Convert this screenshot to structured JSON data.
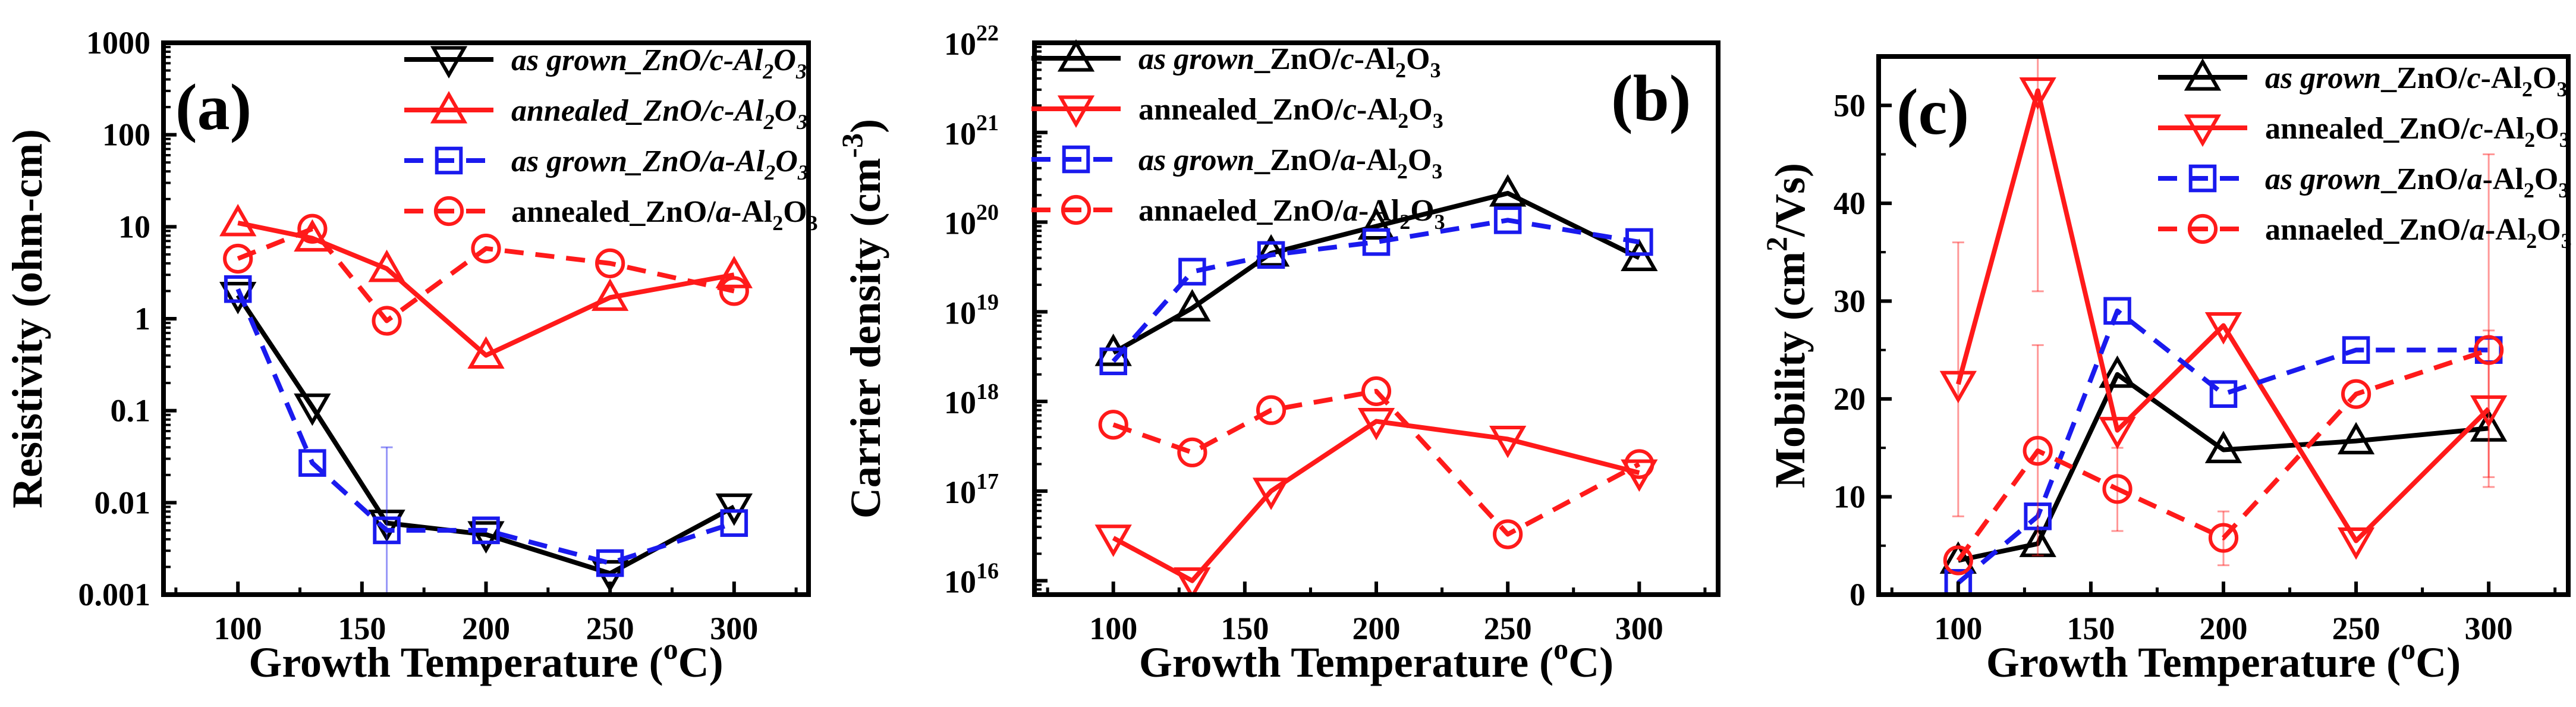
{
  "colors": {
    "black": "#000000",
    "red": "#ff1a1a",
    "blue": "#1a1aee"
  },
  "chart_data": [
    {
      "id": "a",
      "type": "line",
      "panel_label": "(a)",
      "xlabel": "Growth Temperature (",
      "xlabel_sup": "o",
      "xlabel_tail": "C)",
      "ylabel": "Resistivity (ohm-cm)",
      "yscale": "log",
      "xlim": [
        70,
        330
      ],
      "ylim": [
        0.001,
        1000
      ],
      "xticks": [
        100,
        150,
        200,
        250,
        300
      ],
      "yticks": [
        0.001,
        0.01,
        0.1,
        1,
        10,
        100,
        1000
      ],
      "ytick_labels": [
        "0.001",
        "0.01",
        "0.1",
        "1",
        "10",
        "100",
        "1000"
      ],
      "legend_position": "top-right",
      "series": [
        {
          "name": "as grown_ZnO/c-Al2O3",
          "name_parts": [
            [
              "as grown_ZnO/c-Al",
              true
            ],
            [
              "2",
              true,
              "sub"
            ],
            [
              "O",
              true
            ],
            [
              "3",
              true,
              "sub"
            ]
          ],
          "color": "black",
          "marker": "triangle-down",
          "dash": "solid",
          "x": [
            100,
            130,
            160,
            200,
            250,
            300
          ],
          "y": [
            1.8,
            0.11,
            0.006,
            0.0045,
            0.0017,
            0.009
          ]
        },
        {
          "name": "annealed_ZnO/c-Al2O3",
          "name_parts": [
            [
              "annealed_ZnO/c-Al",
              true
            ],
            [
              "2",
              true,
              "sub"
            ],
            [
              "O",
              true
            ],
            [
              "3",
              true,
              "sub"
            ]
          ],
          "color": "red",
          "marker": "triangle-up",
          "dash": "solid",
          "x": [
            100,
            130,
            160,
            200,
            250,
            300
          ],
          "y": [
            11,
            7.5,
            3.5,
            0.4,
            1.7,
            3
          ]
        },
        {
          "name": "as grown_ZnO/a-Al2O3",
          "name_parts": [
            [
              "as grown_ZnO/a-Al",
              true
            ],
            [
              "2",
              true,
              "sub"
            ],
            [
              "O",
              true
            ],
            [
              "3",
              true,
              "sub"
            ]
          ],
          "color": "blue",
          "marker": "square",
          "dash": "dashed",
          "x": [
            100,
            130,
            160,
            200,
            250,
            300
          ],
          "y": [
            2.1,
            0.027,
            0.005,
            0.005,
            0.0022,
            0.006
          ],
          "errors": [
            {
              "x": 160,
              "low": 0.001,
              "high": 0.04
            }
          ]
        },
        {
          "name": "annealed_ZnO/a-Al2O3",
          "name_parts": [
            [
              "annealed_ZnO/",
              false
            ],
            [
              "a",
              true
            ],
            [
              "-Al",
              false
            ],
            [
              "2",
              false,
              "sub"
            ],
            [
              "O",
              false
            ],
            [
              "3",
              false,
              "sub"
            ]
          ],
          "color": "red",
          "marker": "circle",
          "dash": "dashed",
          "x": [
            100,
            130,
            160,
            200,
            250,
            300
          ],
          "y": [
            4.5,
            9.5,
            0.95,
            5.8,
            4,
            2
          ]
        }
      ]
    },
    {
      "id": "b",
      "type": "line",
      "panel_label": "(b)",
      "xlabel": "Growth Temperature (",
      "xlabel_sup": "o",
      "xlabel_tail": "C)",
      "ylabel": "Carrier density (cm",
      "ylabel_sup": "-3",
      "ylabel_tail": ")",
      "yscale": "log",
      "xlim": [
        70,
        330
      ],
      "ylim": [
        7000000000000000.0,
        1e+22
      ],
      "xticks": [
        100,
        150,
        200,
        250,
        300
      ],
      "yticks": [
        1e+16,
        1e+17,
        1e+18,
        1e+19,
        1e+20,
        1e+21,
        1e+22
      ],
      "ytick_exponents": [
        "16",
        "17",
        "18",
        "19",
        "20",
        "21",
        "22"
      ],
      "ytick_base": "10",
      "legend_position": "top-left",
      "series": [
        {
          "name": "as grown_ZnO/c-Al2O3",
          "name_parts": [
            [
              "as grown",
              true
            ],
            [
              "_ZnO/",
              false
            ],
            [
              "c",
              true
            ],
            [
              "-Al",
              false
            ],
            [
              "2",
              false,
              "sub"
            ],
            [
              "O",
              false
            ],
            [
              "3",
              false,
              "sub"
            ]
          ],
          "color": "black",
          "marker": "triangle-up",
          "dash": "solid",
          "x": [
            100,
            130,
            160,
            200,
            250,
            300
          ],
          "y": [
            3.5e+18,
            1.1e+19,
            4.5e+19,
            9e+19,
            2.1e+20,
            4e+19
          ]
        },
        {
          "name": "annealed_ZnO/c-Al2O3",
          "name_parts": [
            [
              "annealed_ZnO/",
              false
            ],
            [
              "c",
              true
            ],
            [
              "-Al",
              false
            ],
            [
              "2",
              false,
              "sub"
            ],
            [
              "O",
              false
            ],
            [
              "3",
              false,
              "sub"
            ]
          ],
          "color": "red",
          "marker": "triangle-down",
          "dash": "solid",
          "x": [
            100,
            130,
            160,
            200,
            250,
            300
          ],
          "y": [
            3e+16,
            1e+16,
            1e+17,
            6e+17,
            3.8e+17,
            1.6e+17
          ]
        },
        {
          "name": "as grown_ZnO/a-Al2O3",
          "name_parts": [
            [
              "as grown",
              true
            ],
            [
              "_ZnO/",
              false
            ],
            [
              "a",
              true
            ],
            [
              "-Al",
              false
            ],
            [
              "2",
              false,
              "sub"
            ],
            [
              "O",
              false
            ],
            [
              "3",
              false,
              "sub"
            ]
          ],
          "color": "blue",
          "marker": "square",
          "dash": "dashed",
          "x": [
            100,
            130,
            160,
            200,
            250,
            300
          ],
          "y": [
            2.8e+18,
            2.8e+19,
            4.3e+19,
            6e+19,
            1.05e+20,
            6e+19
          ]
        },
        {
          "name": "annaeled_ZnO/a-Al2O3",
          "name_parts": [
            [
              "annaeled_ZnO/",
              false
            ],
            [
              "a",
              true
            ],
            [
              "-Al",
              false
            ],
            [
              "2",
              false,
              "sub"
            ],
            [
              "O",
              false
            ],
            [
              "3",
              false,
              "sub"
            ]
          ],
          "color": "red",
          "marker": "circle",
          "dash": "dashed",
          "x": [
            100,
            130,
            160,
            200,
            250,
            300
          ],
          "y": [
            5.5e+17,
            2.7e+17,
            8e+17,
            1.3e+18,
            3.3e+16,
            2e+17
          ]
        }
      ]
    },
    {
      "id": "c",
      "type": "line",
      "panel_label": "(c)",
      "xlabel": "Growth Temperature (",
      "xlabel_sup": "o",
      "xlabel_tail": "C)",
      "ylabel": "Mobility (cm",
      "ylabel_sup": "2",
      "ylabel_tail": "/Vs)",
      "yscale": "linear",
      "xlim": [
        70,
        330
      ],
      "ylim": [
        0,
        55
      ],
      "xticks": [
        100,
        150,
        200,
        250,
        300
      ],
      "yticks": [
        0,
        10,
        20,
        30,
        40,
        50
      ],
      "ytick_labels": [
        "0",
        "10",
        "20",
        "30",
        "40",
        "50"
      ],
      "legend_position": "top-right",
      "series": [
        {
          "name": "as grown_ZnO/c-Al2O3",
          "name_parts": [
            [
              "as grown",
              true
            ],
            [
              "_ZnO/",
              false
            ],
            [
              "c",
              true
            ],
            [
              "-Al",
              false
            ],
            [
              "2",
              false,
              "sub"
            ],
            [
              "O",
              false
            ],
            [
              "3",
              false,
              "sub"
            ]
          ],
          "color": "black",
          "marker": "triangle-up",
          "dash": "solid",
          "x": [
            100,
            130,
            160,
            200,
            250,
            300
          ],
          "y": [
            3.5,
            5.2,
            22.5,
            14.8,
            15.7,
            17
          ]
        },
        {
          "name": "annealed_ZnO/c-Al2O3",
          "name_parts": [
            [
              "annealed_ZnO/",
              false
            ],
            [
              "c",
              true
            ],
            [
              "-Al",
              false
            ],
            [
              "2",
              false,
              "sub"
            ],
            [
              "O",
              false
            ],
            [
              "3",
              false,
              "sub"
            ]
          ],
          "color": "red",
          "marker": "triangle-down",
          "dash": "solid",
          "x": [
            100,
            130,
            160,
            200,
            250,
            300
          ],
          "y": [
            21.5,
            51.5,
            16.8,
            27.5,
            5.5,
            19
          ],
          "errors": [
            {
              "x": 100,
              "low": 8,
              "high": 36
            },
            {
              "x": 130,
              "low": 31,
              "high": 55
            },
            {
              "x": 300,
              "low": 12,
              "high": 27
            }
          ]
        },
        {
          "name": "as grown_ZnO/a-Al2O3",
          "name_parts": [
            [
              "as grown",
              true
            ],
            [
              "_ZnO/",
              false
            ],
            [
              "a",
              true
            ],
            [
              "-Al",
              false
            ],
            [
              "2",
              false,
              "sub"
            ],
            [
              "O",
              false
            ],
            [
              "3",
              false,
              "sub"
            ]
          ],
          "color": "blue",
          "marker": "square",
          "dash": "dashed",
          "x": [
            100,
            130,
            160,
            200,
            250,
            300
          ],
          "y": [
            1.2,
            8,
            29,
            20.5,
            25,
            25
          ]
        },
        {
          "name": "annaeled_ZnO/a-Al2O3",
          "name_parts": [
            [
              "annaeled_ZnO/",
              false
            ],
            [
              "a",
              true
            ],
            [
              "-Al",
              false
            ],
            [
              "2",
              false,
              "sub"
            ],
            [
              "O",
              false
            ],
            [
              "3",
              false,
              "sub"
            ]
          ],
          "color": "red",
          "marker": "circle",
          "dash": "dashed",
          "x": [
            100,
            130,
            160,
            200,
            250,
            300
          ],
          "y": [
            3.5,
            14.7,
            10.8,
            5.8,
            20.5,
            25
          ],
          "errors": [
            {
              "x": 130,
              "low": 4,
              "high": 25.5
            },
            {
              "x": 160,
              "low": 6.5,
              "high": 15
            },
            {
              "x": 200,
              "low": 3,
              "high": 8.5
            },
            {
              "x": 300,
              "low": 11,
              "high": 45
            }
          ]
        }
      ]
    }
  ]
}
